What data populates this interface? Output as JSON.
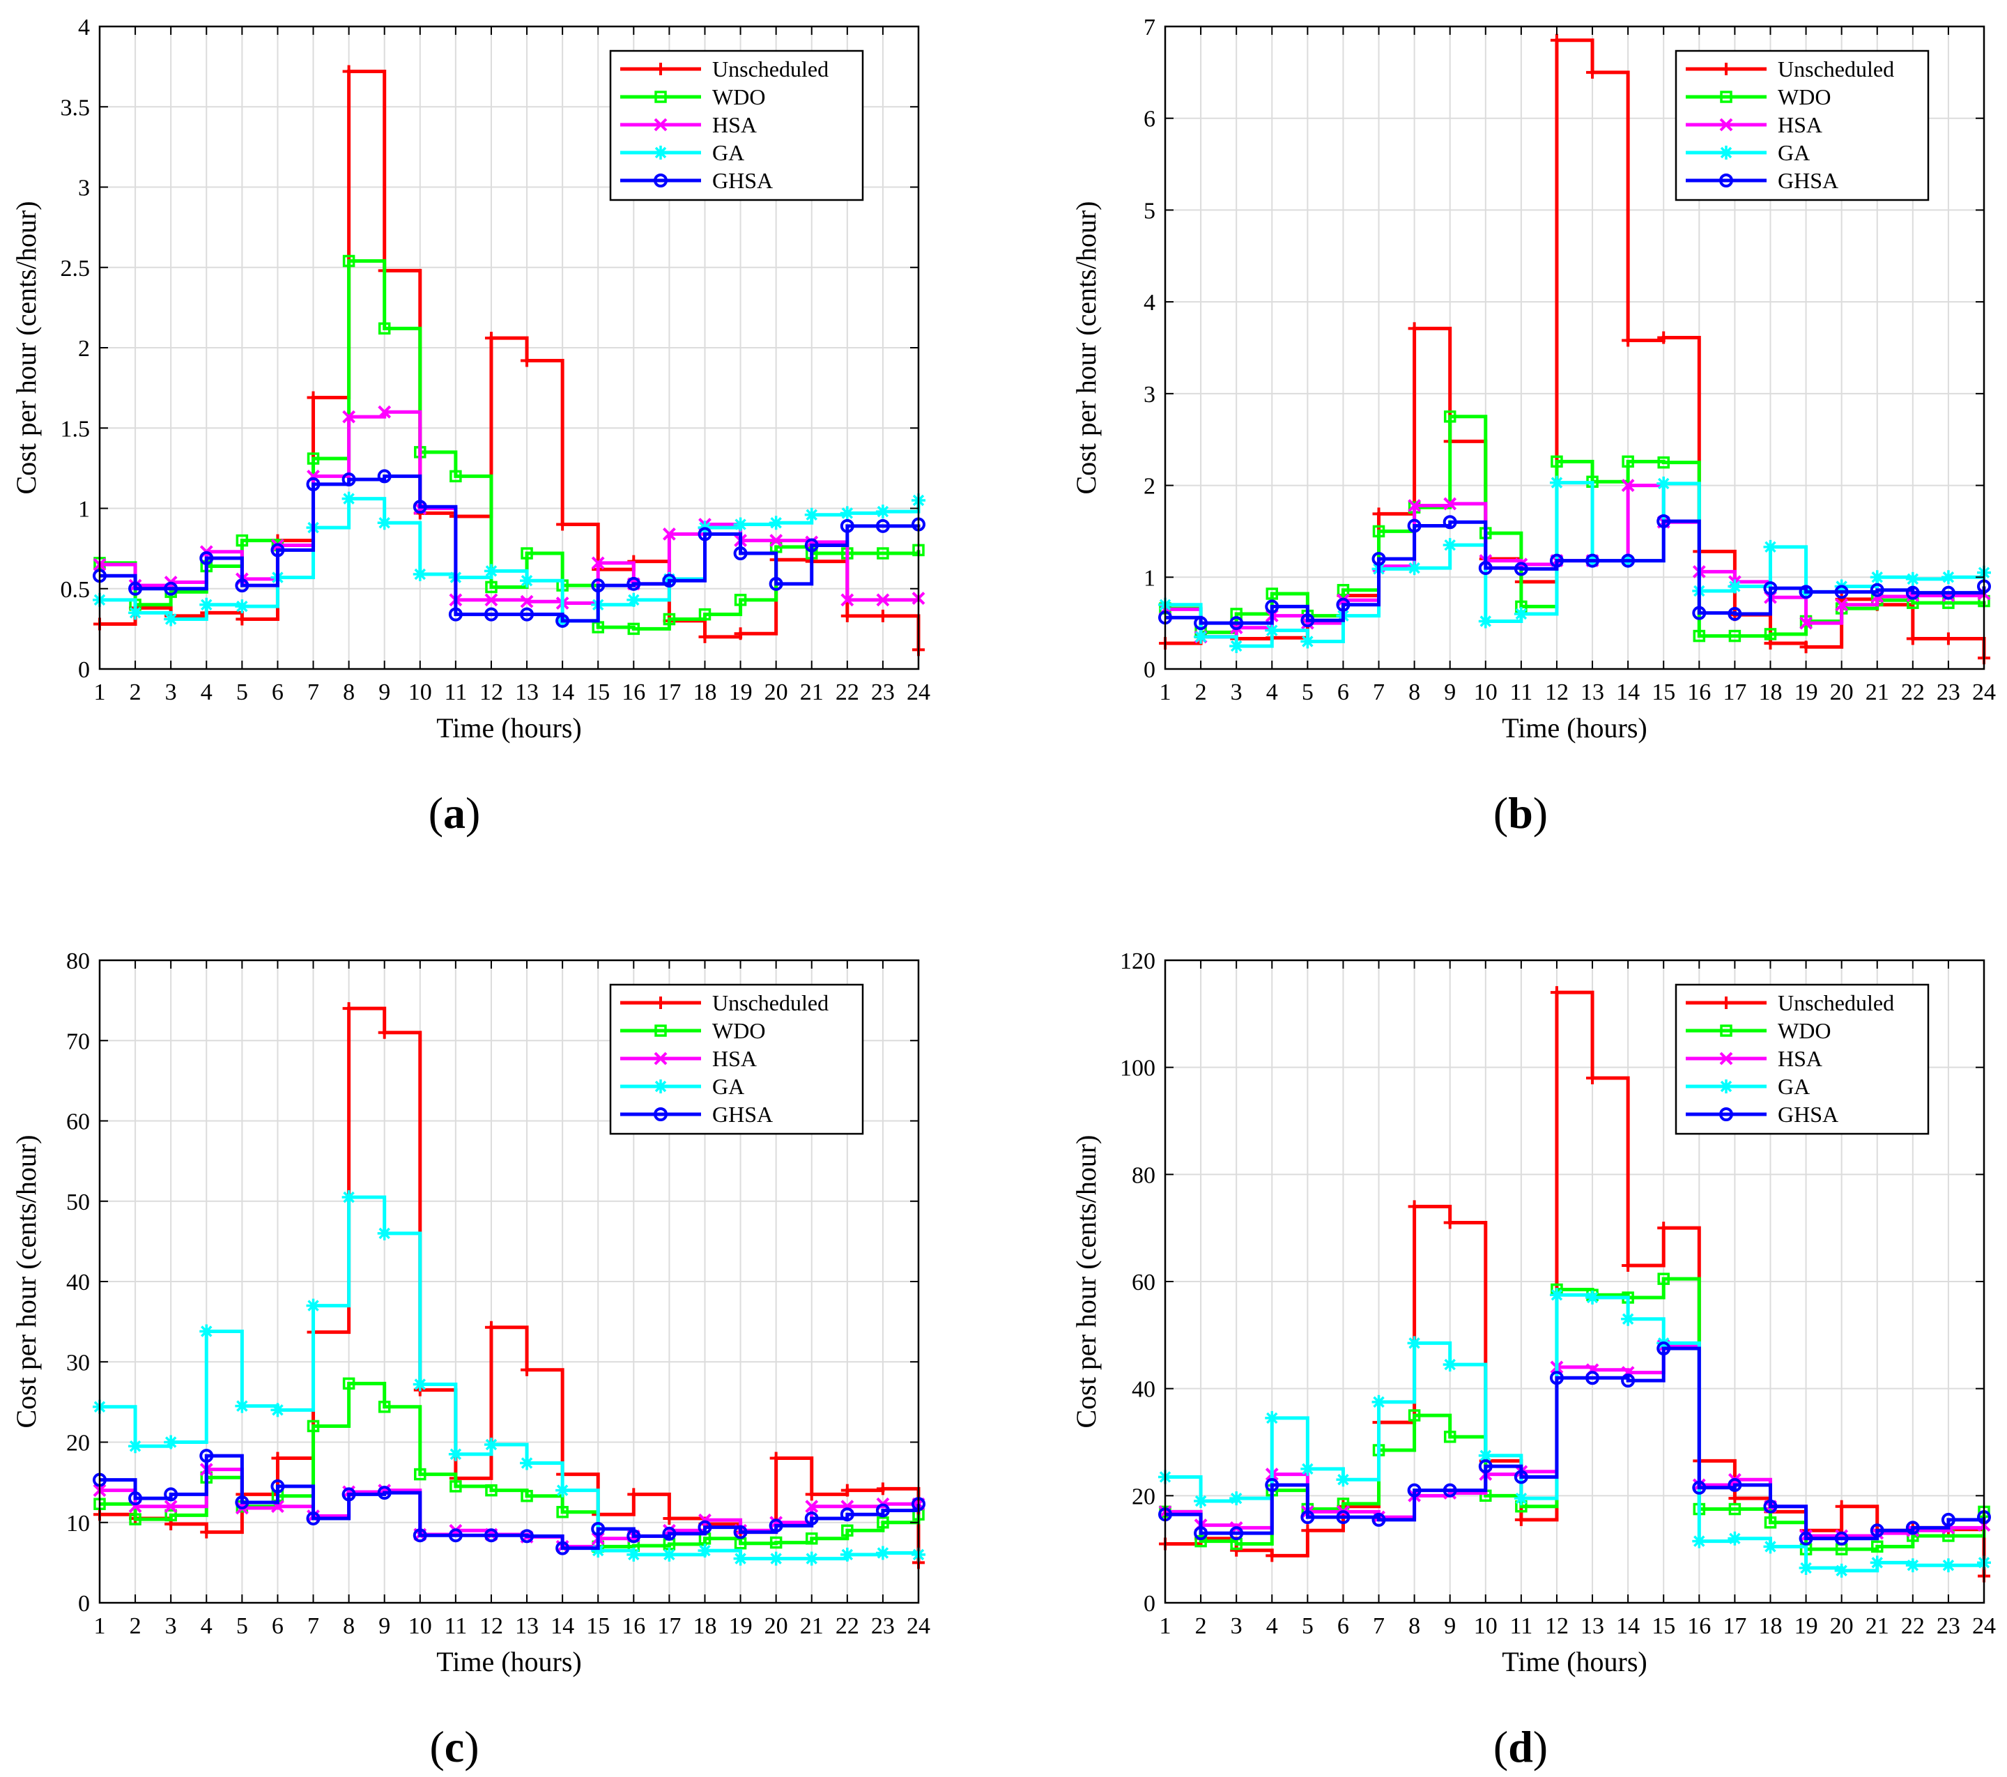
{
  "figure": {
    "colors": {
      "Unscheduled": "#ff0000",
      "WDO": "#00ff00",
      "HSA": "#ff00ff",
      "GA": "#00ffff",
      "GHSA": "#0000ff"
    },
    "markers": {
      "Unscheduled": "plus",
      "WDO": "square",
      "HSA": "x",
      "GA": "star",
      "GHSA": "circle"
    }
  },
  "chart_data": [
    {
      "type": "line",
      "id": "a",
      "caption": {
        "open": "(",
        "letter": "a",
        "close": ")"
      },
      "xlabel": "Time (hours)",
      "ylabel": "Cost per hour (cents/hour)",
      "xlim": [
        1,
        24
      ],
      "ylim": [
        0,
        4
      ],
      "xticks": [
        1,
        2,
        3,
        4,
        5,
        6,
        7,
        8,
        9,
        10,
        11,
        12,
        13,
        14,
        15,
        16,
        17,
        18,
        19,
        20,
        21,
        22,
        23,
        24
      ],
      "yticks": [
        0,
        0.5,
        1,
        1.5,
        2,
        2.5,
        3,
        3.5,
        4
      ],
      "ytick_labels": [
        "0",
        "0.5",
        "1",
        "1.5",
        "2",
        "2.5",
        "3",
        "3.5",
        "4"
      ],
      "grid": true,
      "legend": "top-right",
      "x": [
        1,
        2,
        3,
        4,
        5,
        6,
        7,
        8,
        9,
        10,
        11,
        12,
        13,
        14,
        15,
        16,
        17,
        18,
        19,
        20,
        21,
        22,
        23,
        24
      ],
      "series": [
        {
          "name": "Unscheduled",
          "values": [
            0.28,
            0.38,
            0.33,
            0.35,
            0.31,
            0.8,
            1.69,
            3.72,
            2.48,
            0.97,
            0.95,
            2.06,
            1.92,
            0.9,
            0.62,
            0.67,
            0.3,
            0.2,
            0.22,
            0.68,
            0.67,
            0.33,
            0.33,
            0.12
          ]
        },
        {
          "name": "WDO",
          "values": [
            0.66,
            0.4,
            0.48,
            0.64,
            0.8,
            0.77,
            1.31,
            2.54,
            2.12,
            1.35,
            1.2,
            0.51,
            0.72,
            0.52,
            0.26,
            0.25,
            0.31,
            0.34,
            0.43,
            0.76,
            0.72,
            0.72,
            0.72,
            0.74
          ]
        },
        {
          "name": "HSA",
          "values": [
            0.65,
            0.52,
            0.54,
            0.73,
            0.56,
            0.77,
            1.2,
            1.57,
            1.6,
            1.0,
            0.43,
            0.43,
            0.42,
            0.41,
            0.66,
            0.53,
            0.84,
            0.9,
            0.8,
            0.8,
            0.79,
            0.43,
            0.43,
            0.44
          ]
        },
        {
          "name": "GA",
          "values": [
            0.43,
            0.35,
            0.31,
            0.4,
            0.39,
            0.57,
            0.88,
            1.06,
            0.91,
            0.59,
            0.57,
            0.61,
            0.55,
            0.3,
            0.4,
            0.43,
            0.56,
            0.88,
            0.9,
            0.91,
            0.96,
            0.97,
            0.98,
            1.05
          ]
        },
        {
          "name": "GHSA",
          "values": [
            0.58,
            0.5,
            0.5,
            0.69,
            0.52,
            0.74,
            1.15,
            1.18,
            1.2,
            1.01,
            0.34,
            0.34,
            0.34,
            0.3,
            0.52,
            0.53,
            0.55,
            0.84,
            0.72,
            0.53,
            0.77,
            0.89,
            0.89,
            0.9
          ]
        }
      ]
    },
    {
      "type": "line",
      "id": "b",
      "caption": {
        "open": "(",
        "letter": "b",
        "close": ")"
      },
      "xlabel": "Time (hours)",
      "ylabel": "Cost per hour (cents/hour)",
      "xlim": [
        1,
        24
      ],
      "ylim": [
        0,
        7
      ],
      "xticks": [
        1,
        2,
        3,
        4,
        5,
        6,
        7,
        8,
        9,
        10,
        11,
        12,
        13,
        14,
        15,
        16,
        17,
        18,
        19,
        20,
        21,
        22,
        23,
        24
      ],
      "yticks": [
        0,
        1,
        2,
        3,
        4,
        5,
        6,
        7
      ],
      "ytick_labels": [
        "0",
        "1",
        "2",
        "3",
        "4",
        "5",
        "6",
        "7"
      ],
      "grid": true,
      "legend": "top-right",
      "x": [
        1,
        2,
        3,
        4,
        5,
        6,
        7,
        8,
        9,
        10,
        11,
        12,
        13,
        14,
        15,
        16,
        17,
        18,
        19,
        20,
        21,
        22,
        23,
        24
      ],
      "series": [
        {
          "name": "Unscheduled",
          "values": [
            0.28,
            0.35,
            0.33,
            0.34,
            0.52,
            0.8,
            1.69,
            3.71,
            2.48,
            1.2,
            0.95,
            6.85,
            6.5,
            3.58,
            3.61,
            1.28,
            0.59,
            0.28,
            0.24,
            0.76,
            0.7,
            0.33,
            0.33,
            0.12
          ]
        },
        {
          "name": "WDO",
          "values": [
            0.66,
            0.4,
            0.6,
            0.82,
            0.58,
            0.86,
            1.5,
            1.76,
            2.75,
            1.48,
            0.68,
            2.26,
            2.04,
            2.26,
            2.25,
            0.36,
            0.36,
            0.38,
            0.52,
            0.66,
            0.75,
            0.72,
            0.72,
            0.74
          ]
        },
        {
          "name": "HSA",
          "values": [
            0.65,
            0.35,
            0.45,
            0.58,
            0.5,
            0.75,
            1.12,
            1.78,
            1.8,
            1.18,
            1.14,
            1.18,
            1.18,
            2.0,
            1.6,
            1.06,
            0.95,
            0.78,
            0.5,
            0.7,
            0.79,
            0.8,
            0.8,
            0.82
          ]
        },
        {
          "name": "GA",
          "values": [
            0.7,
            0.35,
            0.25,
            0.42,
            0.3,
            0.58,
            1.09,
            1.1,
            1.35,
            0.52,
            0.6,
            2.03,
            1.18,
            1.18,
            2.02,
            0.85,
            0.9,
            1.33,
            0.84,
            0.9,
            1.0,
            0.98,
            1.0,
            1.05
          ]
        },
        {
          "name": "GHSA",
          "values": [
            0.56,
            0.5,
            0.5,
            0.68,
            0.53,
            0.7,
            1.2,
            1.56,
            1.6,
            1.1,
            1.09,
            1.18,
            1.18,
            1.18,
            1.61,
            0.61,
            0.6,
            0.88,
            0.84,
            0.84,
            0.86,
            0.83,
            0.83,
            0.9
          ]
        }
      ]
    },
    {
      "type": "line",
      "id": "c",
      "caption": {
        "open": "(",
        "letter": "c",
        "close": ")"
      },
      "xlabel": "Time (hours)",
      "ylabel": "Cost per hour (cents/hour)",
      "xlim": [
        1,
        24
      ],
      "ylim": [
        0,
        80
      ],
      "xticks": [
        1,
        2,
        3,
        4,
        5,
        6,
        7,
        8,
        9,
        10,
        11,
        12,
        13,
        14,
        15,
        16,
        17,
        18,
        19,
        20,
        21,
        22,
        23,
        24
      ],
      "yticks": [
        0,
        10,
        20,
        30,
        40,
        50,
        60,
        70,
        80
      ],
      "ytick_labels": [
        "0",
        "10",
        "20",
        "30",
        "40",
        "50",
        "60",
        "70",
        "80"
      ],
      "grid": true,
      "legend": "top-right",
      "x": [
        1,
        2,
        3,
        4,
        5,
        6,
        7,
        8,
        9,
        10,
        11,
        12,
        13,
        14,
        15,
        16,
        17,
        18,
        19,
        20,
        21,
        22,
        23,
        24
      ],
      "series": [
        {
          "name": "Unscheduled",
          "values": [
            11.0,
            10.5,
            9.8,
            8.8,
            13.5,
            18.0,
            33.7,
            74.0,
            71.0,
            26.5,
            15.5,
            34.3,
            29.0,
            16.0,
            11.0,
            13.5,
            10.5,
            9.8,
            8.8,
            18.0,
            13.5,
            14.0,
            14.2,
            5.0
          ]
        },
        {
          "name": "WDO",
          "values": [
            12.3,
            10.4,
            10.9,
            15.6,
            12.0,
            13.3,
            22.0,
            27.3,
            24.4,
            16.0,
            14.5,
            14.0,
            13.3,
            11.3,
            7.0,
            7.1,
            7.3,
            8.0,
            7.4,
            7.5,
            8.0,
            9.0,
            10.0,
            11.0
          ]
        },
        {
          "name": "HSA",
          "values": [
            14.0,
            12.0,
            12.0,
            16.6,
            11.8,
            12.0,
            10.8,
            13.8,
            14.0,
            8.5,
            9.0,
            8.5,
            8.2,
            7.0,
            8.0,
            8.3,
            9.0,
            10.3,
            9.0,
            10.0,
            12.0,
            12.0,
            12.3,
            12.3
          ]
        },
        {
          "name": "GA",
          "values": [
            24.4,
            19.5,
            20.0,
            33.8,
            24.5,
            24.0,
            37.0,
            50.5,
            46.0,
            27.2,
            18.5,
            19.7,
            17.4,
            14.0,
            6.5,
            6.0,
            6.0,
            6.5,
            5.5,
            5.5,
            5.5,
            6.0,
            6.2,
            6.0
          ]
        },
        {
          "name": "GHSA",
          "values": [
            15.3,
            13.0,
            13.5,
            18.3,
            12.5,
            14.5,
            10.5,
            13.5,
            13.7,
            8.4,
            8.4,
            8.4,
            8.3,
            6.8,
            9.2,
            8.3,
            8.6,
            9.4,
            8.8,
            9.6,
            10.5,
            11.0,
            11.5,
            12.3
          ]
        }
      ]
    },
    {
      "type": "line",
      "id": "d",
      "caption": {
        "open": "(",
        "letter": "d",
        "close": ")"
      },
      "xlabel": "Time (hours)",
      "ylabel": "Cost per hour (cents/hour)",
      "xlim": [
        1,
        24
      ],
      "ylim": [
        0,
        120
      ],
      "xticks": [
        1,
        2,
        3,
        4,
        5,
        6,
        7,
        8,
        9,
        10,
        11,
        12,
        13,
        14,
        15,
        16,
        17,
        18,
        19,
        20,
        21,
        22,
        23,
        24
      ],
      "yticks": [
        0,
        20,
        40,
        60,
        80,
        100,
        120
      ],
      "ytick_labels": [
        "0",
        "20",
        "40",
        "60",
        "80",
        "100",
        "120"
      ],
      "grid": true,
      "legend": "top-right",
      "x": [
        1,
        2,
        3,
        4,
        5,
        6,
        7,
        8,
        9,
        10,
        11,
        12,
        13,
        14,
        15,
        16,
        17,
        18,
        19,
        20,
        21,
        22,
        23,
        24
      ],
      "series": [
        {
          "name": "Unscheduled",
          "values": [
            11.0,
            12.0,
            9.8,
            8.8,
            13.5,
            18.0,
            33.7,
            74.0,
            71.0,
            26.5,
            15.5,
            114.0,
            98.0,
            63.0,
            70.0,
            26.5,
            19.5,
            17.0,
            13.5,
            18.0,
            13.5,
            14.0,
            13.7,
            5.0
          ]
        },
        {
          "name": "WDO",
          "values": [
            17.0,
            11.5,
            11.0,
            21.0,
            17.5,
            18.5,
            28.5,
            35.0,
            31.0,
            20.0,
            18.0,
            58.5,
            57.5,
            57.0,
            60.5,
            17.5,
            17.5,
            15.0,
            10.0,
            10.0,
            10.5,
            12.5,
            12.5,
            17.0
          ]
        },
        {
          "name": "HSA",
          "values": [
            17.0,
            14.5,
            14.0,
            24.0,
            17.0,
            17.0,
            16.0,
            20.0,
            20.5,
            24.0,
            24.5,
            44.0,
            43.5,
            43.0,
            48.0,
            22.0,
            23.0,
            18.0,
            12.5,
            12.5,
            13.0,
            13.5,
            14.0,
            14.5
          ]
        },
        {
          "name": "GA",
          "values": [
            23.5,
            19.0,
            19.5,
            34.5,
            25.0,
            23.0,
            37.5,
            48.5,
            44.5,
            27.5,
            19.5,
            57.5,
            57.0,
            53.0,
            48.5,
            11.5,
            12.0,
            10.5,
            6.5,
            6.0,
            7.5,
            7.0,
            7.0,
            7.5
          ]
        },
        {
          "name": "GHSA",
          "values": [
            16.5,
            13.0,
            13.0,
            22.0,
            16.0,
            16.0,
            15.5,
            21.0,
            21.0,
            25.5,
            23.5,
            42.0,
            42.0,
            41.5,
            47.5,
            21.5,
            22.0,
            18.0,
            12.0,
            12.0,
            13.5,
            14.0,
            15.5,
            16.0
          ]
        }
      ]
    }
  ]
}
